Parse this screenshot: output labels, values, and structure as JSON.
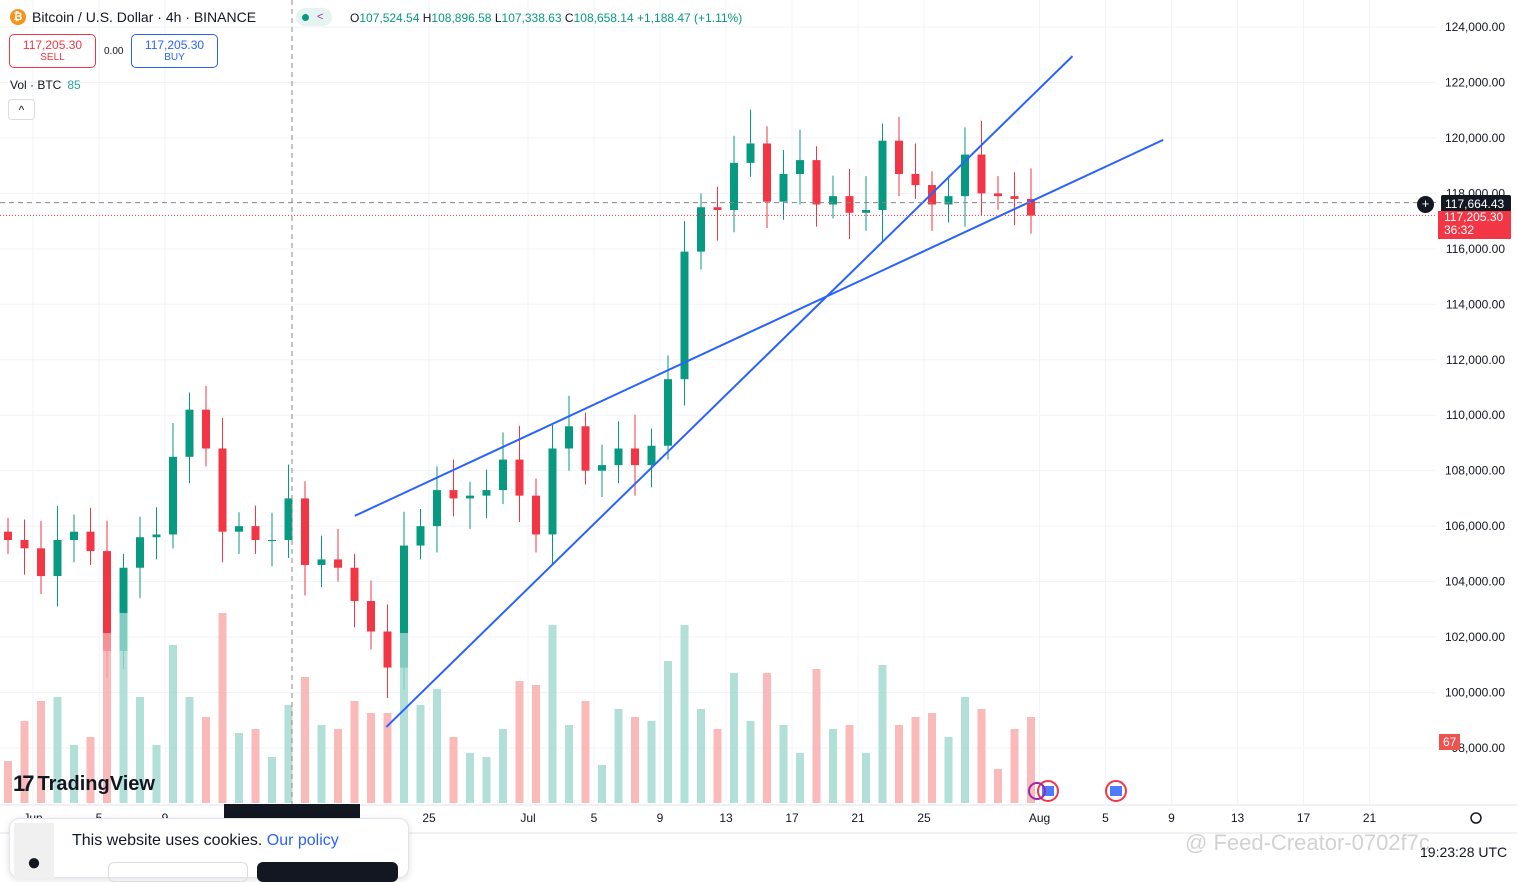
{
  "header": {
    "symbol": "Bitcoin / U.S. Dollar · 4h · BINANCE",
    "ohlc": {
      "o_label": "O",
      "o": "107,524.54",
      "h_label": "H",
      "h": "108,896.58",
      "l_label": "L",
      "l": "107,338.63",
      "c_label": "C",
      "c": "108,658.14",
      "change": "+1,188.47 (+1.11%)"
    }
  },
  "trade": {
    "sell_price": "117,205.30",
    "sell_label": "SELL",
    "spread": "0.00",
    "buy_price": "117,205.30",
    "buy_label": "BUY"
  },
  "volume": {
    "label": "Vol · BTC",
    "value": "85",
    "last_label": "67"
  },
  "price_labels": {
    "crosshair": "117,664.43",
    "current": "117,205.30",
    "countdown": "36:32"
  },
  "cookie": {
    "text": "This website uses cookies.",
    "link": "Our policy"
  },
  "brand": "TradingView",
  "clock": "19:23:28 UTC",
  "watermark": "@ Feed-Creator-0702f7c",
  "colors": {
    "up": "#089981",
    "down": "#f23645",
    "trendline": "#2962ff"
  },
  "chart_data": {
    "type": "candlestick",
    "interval": "4h",
    "yaxis": {
      "ticks": [
        124000,
        122000,
        120000,
        118000,
        116000,
        114000,
        112000,
        110000,
        108000,
        106000,
        104000,
        102000,
        100000,
        98000
      ],
      "range": [
        97000,
        124600
      ]
    },
    "xaxis": {
      "ticks": [
        {
          "label": "Jun",
          "date": "2025-06-01"
        },
        {
          "label": "5",
          "date": "2025-06-05"
        },
        {
          "label": "9",
          "date": "2025-06-09"
        },
        {
          "label": "25",
          "date": "2025-06-25"
        },
        {
          "label": "Jul",
          "date": "2025-07-01"
        },
        {
          "label": "5",
          "date": "2025-07-05"
        },
        {
          "label": "9",
          "date": "2025-07-09"
        },
        {
          "label": "13",
          "date": "2025-07-13"
        },
        {
          "label": "17",
          "date": "2025-07-17"
        },
        {
          "label": "21",
          "date": "2025-07-21"
        },
        {
          "label": "25",
          "date": "2025-07-25"
        },
        {
          "label": "Aug",
          "date": "2025-08-01"
        },
        {
          "label": "5",
          "date": "2025-08-05"
        },
        {
          "label": "9",
          "date": "2025-08-09"
        },
        {
          "label": "13",
          "date": "2025-08-13"
        },
        {
          "label": "17",
          "date": "2025-08-17"
        },
        {
          "label": "21",
          "date": "2025-08-21"
        }
      ]
    },
    "daily_close": [
      [
        "2025-05-30",
        105500
      ],
      [
        "2025-05-31",
        105200
      ],
      [
        "2025-06-01",
        104200
      ],
      [
        "2025-06-02",
        105500
      ],
      [
        "2025-06-03",
        105800
      ],
      [
        "2025-06-04",
        105100
      ],
      [
        "2025-06-05",
        101500
      ],
      [
        "2025-06-06",
        104500
      ],
      [
        "2025-06-07",
        105600
      ],
      [
        "2025-06-08",
        105700
      ],
      [
        "2025-06-09",
        108500
      ],
      [
        "2025-06-10",
        110200
      ],
      [
        "2025-06-11",
        108800
      ],
      [
        "2025-06-12",
        105800
      ],
      [
        "2025-06-13",
        106000
      ],
      [
        "2025-06-14",
        105500
      ],
      [
        "2025-06-15",
        105500
      ],
      [
        "2025-06-16",
        107000
      ],
      [
        "2025-06-17",
        104600
      ],
      [
        "2025-06-18",
        104800
      ],
      [
        "2025-06-19",
        104500
      ],
      [
        "2025-06-20",
        103300
      ],
      [
        "2025-06-21",
        102200
      ],
      [
        "2025-06-22",
        100900
      ],
      [
        "2025-06-23",
        105300
      ],
      [
        "2025-06-24",
        106000
      ],
      [
        "2025-06-25",
        107300
      ],
      [
        "2025-06-26",
        107000
      ],
      [
        "2025-06-27",
        107100
      ],
      [
        "2025-06-28",
        107300
      ],
      [
        "2025-06-29",
        108400
      ],
      [
        "2025-06-30",
        107100
      ],
      [
        "2025-07-01",
        105700
      ],
      [
        "2025-07-02",
        108800
      ],
      [
        "2025-07-03",
        109600
      ],
      [
        "2025-07-04",
        108000
      ],
      [
        "2025-07-05",
        108200
      ],
      [
        "2025-07-06",
        108800
      ],
      [
        "2025-07-07",
        108200
      ],
      [
        "2025-07-08",
        108900
      ],
      [
        "2025-07-09",
        111300
      ],
      [
        "2025-07-10",
        115900
      ],
      [
        "2025-07-11",
        117500
      ],
      [
        "2025-07-12",
        117400
      ],
      [
        "2025-07-13",
        119100
      ],
      [
        "2025-07-14",
        119800
      ],
      [
        "2025-07-15",
        117700
      ],
      [
        "2025-07-16",
        118700
      ],
      [
        "2025-07-17",
        119200
      ],
      [
        "2025-07-18",
        117600
      ],
      [
        "2025-07-19",
        117900
      ],
      [
        "2025-07-20",
        117300
      ],
      [
        "2025-07-21",
        117400
      ],
      [
        "2025-07-22",
        119900
      ],
      [
        "2025-07-23",
        118700
      ],
      [
        "2025-07-24",
        118300
      ],
      [
        "2025-07-25",
        117600
      ],
      [
        "2025-07-26",
        117900
      ],
      [
        "2025-07-27",
        119400
      ],
      [
        "2025-07-28",
        118000
      ],
      [
        "2025-07-29",
        117900
      ],
      [
        "2025-07-30",
        117800
      ],
      [
        "2025-07-31",
        117200
      ]
    ],
    "current_price": 117205.3,
    "crosshair_price": 117664.43,
    "trendlines": [
      {
        "from": [
          "2025-06-20T12:00",
          106370
        ],
        "to": [
          "2025-08-08T12:00",
          119930
        ]
      },
      {
        "from": [
          "2025-06-22T10:00",
          98760
        ],
        "to": [
          "2025-08-03T00:00",
          122950
        ]
      }
    ]
  }
}
